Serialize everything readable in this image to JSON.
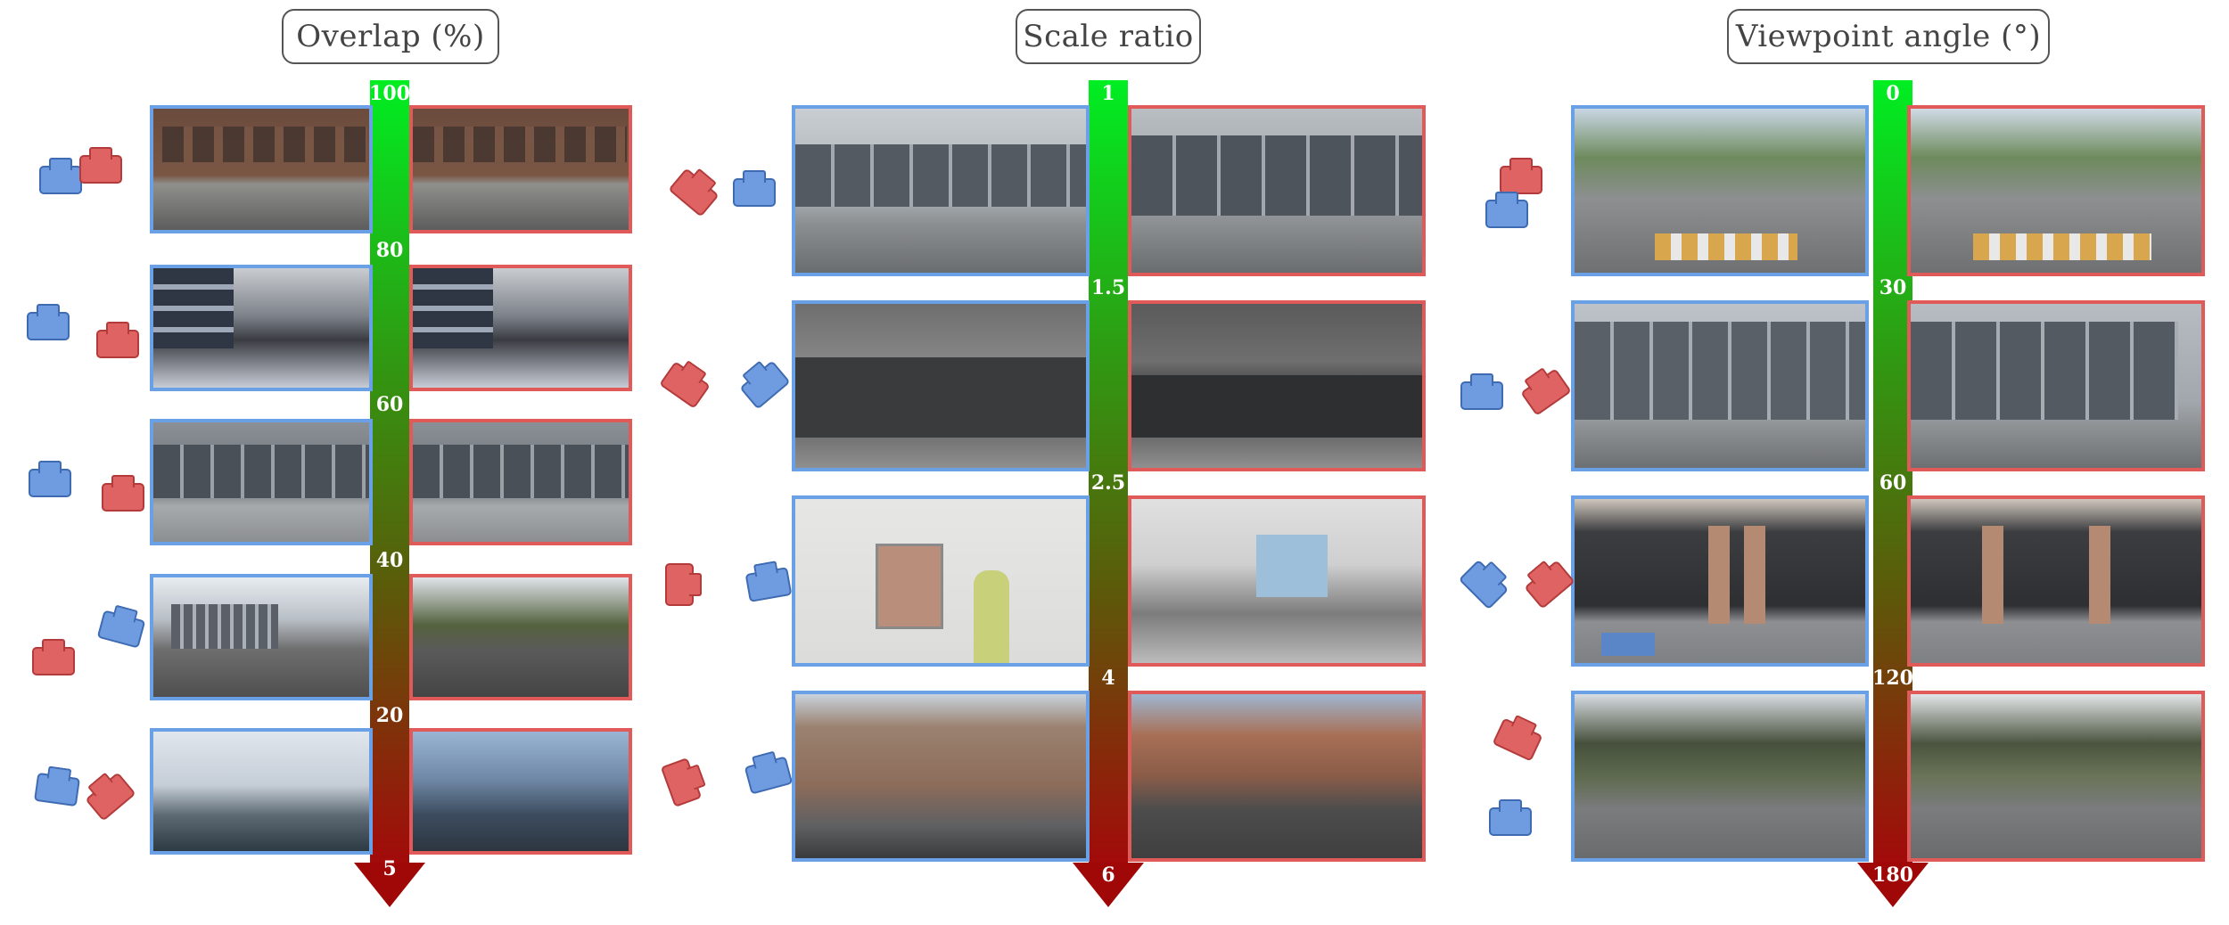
{
  "panels": [
    {
      "title": "Overlap (%)",
      "ticks": [
        "100",
        "80",
        "60",
        "40",
        "20",
        "5"
      ],
      "rows": [
        {
          "left_scene": "brick building street",
          "right_scene": "brick building street"
        },
        {
          "left_scene": "glass building sidewalk",
          "right_scene": "glass building sidewalk"
        },
        {
          "left_scene": "radius storefront",
          "right_scene": "radius storefront"
        },
        {
          "left_scene": "street with truck",
          "right_scene": "street with trees"
        },
        {
          "left_scene": "waterfront pedestrian",
          "right_scene": "waterfront skyline"
        }
      ]
    },
    {
      "title": "Scale ratio",
      "ticks": [
        "1",
        "1.5",
        "2.5",
        "4",
        "6"
      ],
      "rows": [
        {
          "left_scene": "radius storefront wide",
          "right_scene": "radius storefront close"
        },
        {
          "left_scene": "construction fence",
          "right_scene": "construction fence"
        },
        {
          "left_scene": "indoor notice board",
          "right_scene": "underpass crosswalk"
        },
        {
          "left_scene": "turn on red sign",
          "right_scene": "city street intersection"
        }
      ]
    },
    {
      "title": "Viewpoint angle (°)",
      "ticks": [
        "0",
        "30",
        "60",
        "120",
        "180"
      ],
      "rows": [
        {
          "left_scene": "crosswalk plaza",
          "right_scene": "crosswalk plaza"
        },
        {
          "left_scene": "glass storefront",
          "right_scene": "glass storefront"
        },
        {
          "left_scene": "parking garage columns",
          "right_scene": "parking garage columns"
        },
        {
          "left_scene": "tree lined road",
          "right_scene": "tree lined road"
        }
      ]
    }
  ],
  "colors": {
    "source": "#6aa0e6",
    "target": "#e05a5a",
    "bar_top": "#00ee22",
    "bar_bottom": "#a30a0a"
  }
}
